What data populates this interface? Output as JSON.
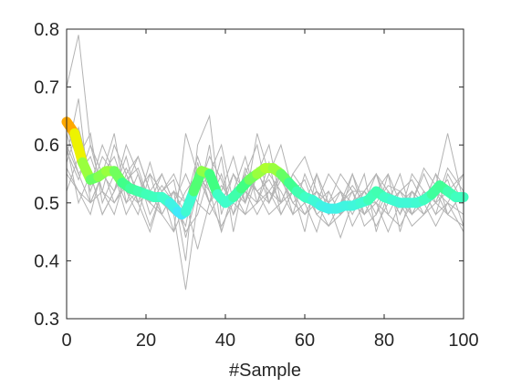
{
  "chart_data": {
    "type": "line",
    "xlabel": "#Sample",
    "ylabel": "",
    "title": "",
    "xlim": [
      0,
      100
    ],
    "ylim": [
      0.3,
      0.8
    ],
    "xticks": [
      "0",
      "20",
      "40",
      "60",
      "80",
      "100"
    ],
    "yticks": [
      "0.3",
      "0.4",
      "0.5",
      "0.6",
      "0.7",
      "0.8"
    ],
    "grid": false,
    "legend": "none",
    "colors": {
      "background_series": "#b3b3b3",
      "axis": "#262626",
      "colormap": [
        "#ff8c00",
        "#ffd700",
        "#e5ff00",
        "#adff2f",
        "#40ff80",
        "#40ffc8",
        "#40e8ff"
      ]
    },
    "mean_series": {
      "x": [
        0,
        2,
        4,
        6,
        8,
        10,
        12,
        14,
        16,
        18,
        20,
        22,
        24,
        26,
        28,
        29,
        30,
        32,
        34,
        36,
        38,
        40,
        42,
        44,
        46,
        48,
        50,
        52,
        54,
        56,
        58,
        60,
        62,
        64,
        66,
        68,
        70,
        72,
        74,
        76,
        78,
        80,
        82,
        84,
        86,
        88,
        90,
        92,
        94,
        96,
        98,
        100
      ],
      "y": [
        0.64,
        0.62,
        0.57,
        0.54,
        0.545,
        0.555,
        0.555,
        0.535,
        0.525,
        0.52,
        0.515,
        0.51,
        0.51,
        0.5,
        0.485,
        0.48,
        0.485,
        0.52,
        0.555,
        0.55,
        0.515,
        0.5,
        0.51,
        0.525,
        0.54,
        0.55,
        0.56,
        0.56,
        0.55,
        0.535,
        0.52,
        0.51,
        0.505,
        0.495,
        0.49,
        0.49,
        0.495,
        0.495,
        0.5,
        0.505,
        0.52,
        0.51,
        0.505,
        0.5,
        0.5,
        0.5,
        0.505,
        0.515,
        0.53,
        0.52,
        0.51,
        0.51
      ]
    },
    "background_series": [
      {
        "x": [
          0,
          3,
          6,
          9,
          12,
          15,
          18,
          21,
          24,
          27,
          30,
          33,
          36,
          39,
          42,
          45,
          48,
          51,
          54,
          57,
          60,
          63,
          66,
          69,
          72,
          75,
          78,
          81,
          84,
          87,
          90,
          93,
          96,
          100
        ],
        "y": [
          0.7,
          0.79,
          0.6,
          0.55,
          0.62,
          0.5,
          0.55,
          0.48,
          0.52,
          0.45,
          0.62,
          0.55,
          0.5,
          0.58,
          0.45,
          0.55,
          0.6,
          0.5,
          0.55,
          0.48,
          0.5,
          0.45,
          0.52,
          0.48,
          0.5,
          0.55,
          0.45,
          0.52,
          0.48,
          0.55,
          0.52,
          0.48,
          0.55,
          0.5
        ]
      },
      {
        "x": [
          0,
          3,
          6,
          9,
          12,
          15,
          18,
          21,
          24,
          27,
          30,
          33,
          36,
          39,
          42,
          45,
          48,
          51,
          54,
          57,
          60,
          63,
          66,
          69,
          72,
          75,
          78,
          81,
          84,
          87,
          90,
          93,
          96,
          100
        ],
        "y": [
          0.62,
          0.55,
          0.58,
          0.52,
          0.6,
          0.55,
          0.5,
          0.57,
          0.5,
          0.48,
          0.35,
          0.5,
          0.6,
          0.45,
          0.52,
          0.58,
          0.5,
          0.57,
          0.48,
          0.52,
          0.45,
          0.55,
          0.5,
          0.44,
          0.5,
          0.52,
          0.48,
          0.55,
          0.45,
          0.52,
          0.5,
          0.55,
          0.48,
          0.46
        ]
      },
      {
        "x": [
          0,
          3,
          6,
          9,
          12,
          15,
          18,
          21,
          24,
          27,
          30,
          33,
          36,
          39,
          42,
          45,
          48,
          51,
          54,
          57,
          60,
          63,
          66,
          69,
          72,
          75,
          78,
          81,
          84,
          87,
          90,
          93,
          96,
          100
        ],
        "y": [
          0.58,
          0.68,
          0.5,
          0.55,
          0.52,
          0.6,
          0.55,
          0.5,
          0.48,
          0.52,
          0.4,
          0.6,
          0.65,
          0.48,
          0.55,
          0.5,
          0.62,
          0.55,
          0.6,
          0.52,
          0.48,
          0.5,
          0.46,
          0.5,
          0.52,
          0.48,
          0.5,
          0.45,
          0.5,
          0.48,
          0.52,
          0.5,
          0.56,
          0.52
        ]
      },
      {
        "x": [
          0,
          3,
          6,
          9,
          12,
          15,
          18,
          21,
          24,
          27,
          30,
          33,
          36,
          39,
          42,
          45,
          48,
          51,
          54,
          57,
          60,
          63,
          66,
          69,
          72,
          75,
          78,
          81,
          84,
          87,
          90,
          93,
          96,
          100
        ],
        "y": [
          0.55,
          0.52,
          0.48,
          0.56,
          0.5,
          0.53,
          0.58,
          0.52,
          0.55,
          0.5,
          0.45,
          0.48,
          0.55,
          0.6,
          0.5,
          0.48,
          0.55,
          0.52,
          0.5,
          0.55,
          0.58,
          0.52,
          0.48,
          0.52,
          0.46,
          0.5,
          0.55,
          0.5,
          0.52,
          0.5,
          0.48,
          0.52,
          0.5,
          0.48
        ]
      },
      {
        "x": [
          0,
          3,
          6,
          9,
          12,
          15,
          18,
          21,
          24,
          27,
          30,
          33,
          36,
          39,
          42,
          45,
          48,
          51,
          54,
          57,
          60,
          63,
          66,
          69,
          72,
          75,
          78,
          81,
          84,
          87,
          90,
          93,
          96,
          100
        ],
        "y": [
          0.6,
          0.5,
          0.55,
          0.48,
          0.52,
          0.58,
          0.5,
          0.45,
          0.52,
          0.55,
          0.5,
          0.42,
          0.5,
          0.55,
          0.48,
          0.52,
          0.5,
          0.55,
          0.52,
          0.48,
          0.55,
          0.5,
          0.52,
          0.48,
          0.55,
          0.5,
          0.46,
          0.5,
          0.52,
          0.48,
          0.5,
          0.55,
          0.52,
          0.55
        ]
      },
      {
        "x": [
          0,
          3,
          6,
          9,
          12,
          15,
          18,
          21,
          24,
          27,
          30,
          33,
          36,
          39,
          42,
          45,
          48,
          51,
          54,
          57,
          60,
          63,
          66,
          69,
          72,
          75,
          78,
          81,
          84,
          87,
          90,
          93,
          96,
          100
        ],
        "y": [
          0.65,
          0.6,
          0.52,
          0.58,
          0.55,
          0.5,
          0.52,
          0.55,
          0.48,
          0.45,
          0.5,
          0.58,
          0.52,
          0.5,
          0.55,
          0.52,
          0.48,
          0.52,
          0.55,
          0.5,
          0.52,
          0.48,
          0.5,
          0.52,
          0.48,
          0.52,
          0.5,
          0.48,
          0.46,
          0.5,
          0.55,
          0.5,
          0.48,
          0.52
        ]
      },
      {
        "x": [
          0,
          3,
          6,
          9,
          12,
          15,
          18,
          21,
          24,
          27,
          30,
          33,
          36,
          39,
          42,
          45,
          48,
          51,
          54,
          57,
          60,
          63,
          66,
          69,
          72,
          75,
          78,
          81,
          84,
          87,
          90,
          93,
          96,
          100
        ],
        "y": [
          0.52,
          0.58,
          0.62,
          0.5,
          0.55,
          0.48,
          0.52,
          0.5,
          0.55,
          0.5,
          0.55,
          0.5,
          0.48,
          0.52,
          0.58,
          0.5,
          0.55,
          0.6,
          0.5,
          0.52,
          0.5,
          0.55,
          0.48,
          0.5,
          0.55,
          0.48,
          0.52,
          0.5,
          0.55,
          0.48,
          0.52,
          0.48,
          0.5,
          0.45
        ]
      },
      {
        "x": [
          0,
          3,
          6,
          9,
          12,
          15,
          18,
          21,
          24,
          27,
          30,
          33,
          36,
          39,
          42,
          45,
          48,
          51,
          54,
          57,
          60,
          63,
          66,
          69,
          72,
          75,
          78,
          81,
          84,
          87,
          90,
          93,
          96,
          100
        ],
        "y": [
          0.6,
          0.55,
          0.5,
          0.52,
          0.48,
          0.55,
          0.58,
          0.52,
          0.5,
          0.52,
          0.48,
          0.55,
          0.5,
          0.46,
          0.5,
          0.55,
          0.52,
          0.48,
          0.5,
          0.55,
          0.52,
          0.5,
          0.55,
          0.52,
          0.5,
          0.48,
          0.52,
          0.55,
          0.5,
          0.52,
          0.48,
          0.5,
          0.52,
          0.5
        ]
      },
      {
        "x": [
          0,
          3,
          6,
          9,
          12,
          15,
          18,
          21,
          24,
          27,
          30,
          33,
          36,
          39,
          42,
          45,
          48,
          51,
          54,
          57,
          60,
          63,
          66,
          69,
          72,
          75,
          78,
          81,
          84,
          87,
          90,
          93,
          96,
          100
        ],
        "y": [
          0.57,
          0.63,
          0.55,
          0.48,
          0.52,
          0.56,
          0.52,
          0.46,
          0.52,
          0.54,
          0.44,
          0.52,
          0.58,
          0.54,
          0.48,
          0.56,
          0.52,
          0.54,
          0.5,
          0.52,
          0.54,
          0.48,
          0.46,
          0.48,
          0.52,
          0.46,
          0.48,
          0.52,
          0.5,
          0.46,
          0.48,
          0.52,
          0.54,
          0.46
        ]
      },
      {
        "x": [
          0,
          3,
          6,
          9,
          12,
          15,
          18,
          21,
          24,
          27,
          30,
          33,
          36,
          39,
          42,
          45,
          48,
          51,
          54,
          57,
          60,
          63,
          66,
          69,
          72,
          75,
          78,
          81,
          84,
          87,
          90,
          93,
          96,
          100
        ],
        "y": [
          0.63,
          0.57,
          0.53,
          0.6,
          0.55,
          0.52,
          0.48,
          0.55,
          0.52,
          0.48,
          0.52,
          0.55,
          0.52,
          0.45,
          0.52,
          0.5,
          0.56,
          0.5,
          0.54,
          0.5,
          0.48,
          0.52,
          0.5,
          0.55,
          0.52,
          0.52,
          0.55,
          0.48,
          0.52,
          0.54,
          0.5,
          0.46,
          0.5,
          0.55
        ]
      },
      {
        "x": [
          0,
          3,
          6,
          9,
          12,
          15,
          18,
          21,
          24,
          27,
          30,
          33,
          36,
          39,
          42,
          45,
          48,
          51,
          54,
          57,
          60,
          63,
          66,
          69,
          72,
          75,
          78,
          81,
          84,
          87,
          90,
          93,
          96,
          100
        ],
        "y": [
          0.56,
          0.52,
          0.5,
          0.55,
          0.58,
          0.52,
          0.5,
          0.52,
          0.48,
          0.52,
          0.5,
          0.52,
          0.55,
          0.5,
          0.52,
          0.48,
          0.5,
          0.52,
          0.48,
          0.52,
          0.5,
          0.52,
          0.5,
          0.48,
          0.5,
          0.52,
          0.55,
          0.52,
          0.48,
          0.52,
          0.5,
          0.52,
          0.48,
          0.52
        ]
      },
      {
        "x": [
          0,
          3,
          6,
          9,
          12,
          15,
          18,
          21,
          24,
          27,
          30,
          33,
          36,
          39,
          42,
          45,
          48,
          51,
          54,
          57,
          60,
          63,
          66,
          69,
          72,
          75,
          78,
          81,
          84,
          87,
          90,
          93,
          96,
          100
        ],
        "y": [
          0.59,
          0.54,
          0.6,
          0.52,
          0.5,
          0.54,
          0.56,
          0.5,
          0.53,
          0.5,
          0.46,
          0.57,
          0.5,
          0.53,
          0.5,
          0.54,
          0.52,
          0.5,
          0.56,
          0.53,
          0.5,
          0.52,
          0.48,
          0.5,
          0.53,
          0.5,
          0.5,
          0.53,
          0.52,
          0.5,
          0.56,
          0.53,
          0.62,
          0.5
        ]
      }
    ]
  }
}
